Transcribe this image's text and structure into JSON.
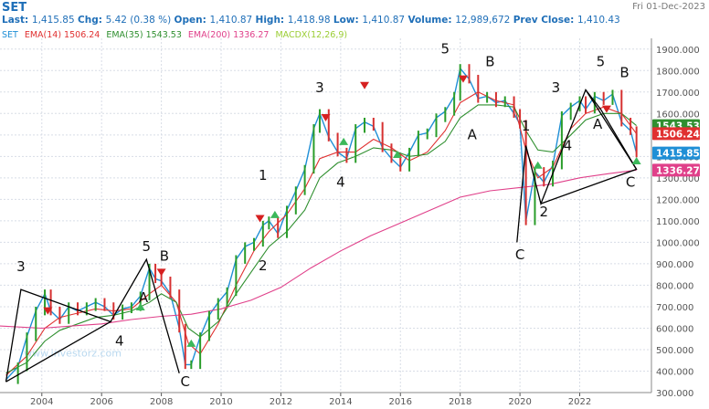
{
  "header": {
    "symbol": "SET",
    "date": "Fri 01-Dec-2023",
    "line1": [
      {
        "label": "Last:",
        "value": "1,415.85"
      },
      {
        "label": "Chg:",
        "value": "5.42 (0.38 %)"
      },
      {
        "label": "Open:",
        "value": "1,410.87"
      },
      {
        "label": "High:",
        "value": "1,418.98"
      },
      {
        "label": "Low:",
        "value": "1,410.87"
      },
      {
        "label": "Volume:",
        "value": "12,989,672"
      },
      {
        "label": "Prev Close:",
        "value": "1,410.43"
      }
    ],
    "legend": [
      {
        "name": "SET",
        "value": "",
        "color": "#1f8fd6"
      },
      {
        "name": "EMA(14)",
        "value": "1506.24",
        "color": "#e03030"
      },
      {
        "name": "EMA(35)",
        "value": "1543.53",
        "color": "#2f8f2f"
      },
      {
        "name": "EMA(200)",
        "value": "1336.27",
        "color": "#e0408a"
      },
      {
        "name": "MACDX(12,26,9)",
        "value": "",
        "color": "#9acd32"
      }
    ]
  },
  "watermark": "www.investorz.com",
  "chart_data": {
    "type": "line",
    "y_axis": {
      "ylim": [
        300,
        1950
      ],
      "ticks": [
        300,
        400,
        500,
        600,
        700,
        800,
        900,
        1000,
        1100,
        1200,
        1300,
        1400,
        1500,
        1600,
        1700,
        1800,
        1900
      ],
      "tick_labels": [
        "300.000",
        "400.000",
        "500.000",
        "600.000",
        "700.000",
        "800.000",
        "900.000",
        "1000.000",
        "1100.000",
        "1200.000",
        "1300.000",
        "1400.000",
        "1500.000",
        "1600.000",
        "1700.000",
        "1800.000",
        "1900.000"
      ]
    },
    "x_axis": {
      "xlim": [
        2002.6,
        2024.4
      ],
      "ticks": [
        2004,
        2006,
        2008,
        2010,
        2012,
        2014,
        2016,
        2018,
        2020,
        2022
      ],
      "tick_labels": [
        "2004",
        "2006",
        "2008",
        "2010",
        "2012",
        "2014",
        "2016",
        "2018",
        "2020",
        "2022"
      ]
    },
    "price_labels": [
      {
        "text": "1543.53",
        "value": 1543.53,
        "color": "#2f8f2f"
      },
      {
        "text": "1506.24",
        "value": 1506.24,
        "color": "#e03030"
      },
      {
        "text": "1415.85",
        "value": 1415.85,
        "color": "#1f8fd6"
      },
      {
        "text": "1336.27",
        "value": 1336.27,
        "color": "#e0408a"
      }
    ],
    "series": [
      {
        "name": "SET",
        "color": "#1f8fd6",
        "x": [
          2002.8,
          2003.2,
          2003.5,
          2003.8,
          2004.1,
          2004.3,
          2004.6,
          2004.9,
          2005.2,
          2005.5,
          2005.8,
          2006.1,
          2006.4,
          2006.7,
          2007.0,
          2007.3,
          2007.6,
          2007.8,
          2008.0,
          2008.3,
          2008.6,
          2008.8,
          2009.0,
          2009.3,
          2009.6,
          2009.9,
          2010.2,
          2010.5,
          2010.8,
          2011.1,
          2011.4,
          2011.6,
          2011.9,
          2012.2,
          2012.5,
          2012.8,
          2013.1,
          2013.3,
          2013.6,
          2013.9,
          2014.2,
          2014.5,
          2014.8,
          2015.1,
          2015.4,
          2015.7,
          2016.0,
          2016.3,
          2016.6,
          2016.9,
          2017.2,
          2017.5,
          2017.8,
          2018.0,
          2018.3,
          2018.6,
          2018.9,
          2019.2,
          2019.5,
          2019.8,
          2020.0,
          2020.2,
          2020.5,
          2020.8,
          2021.1,
          2021.4,
          2021.7,
          2022.0,
          2022.2,
          2022.5,
          2022.8,
          2023.1,
          2023.4,
          2023.7,
          2023.9
        ],
        "values": [
          360,
          420,
          560,
          680,
          760,
          680,
          640,
          700,
          680,
          700,
          720,
          700,
          660,
          690,
          700,
          750,
          880,
          830,
          820,
          760,
          600,
          430,
          430,
          560,
          660,
          720,
          770,
          920,
          980,
          1000,
          1080,
          1100,
          1040,
          1150,
          1240,
          1340,
          1530,
          1600,
          1490,
          1420,
          1390,
          1530,
          1560,
          1540,
          1440,
          1390,
          1350,
          1420,
          1500,
          1510,
          1580,
          1610,
          1680,
          1810,
          1760,
          1670,
          1680,
          1650,
          1660,
          1600,
          1550,
          1100,
          1330,
          1280,
          1360,
          1590,
          1630,
          1660,
          1620,
          1680,
          1660,
          1690,
          1560,
          1520,
          1415.85
        ]
      },
      {
        "name": "EMA(14)",
        "color": "#e03030",
        "x": [
          2002.8,
          2003.5,
          2004.1,
          2004.6,
          2005.2,
          2005.8,
          2006.4,
          2007.0,
          2007.6,
          2008.0,
          2008.5,
          2008.9,
          2009.3,
          2009.9,
          2010.5,
          2011.1,
          2011.6,
          2012.2,
          2012.8,
          2013.3,
          2013.9,
          2014.5,
          2015.1,
          2015.7,
          2016.3,
          2016.9,
          2017.5,
          2018.0,
          2018.6,
          2019.2,
          2019.8,
          2020.2,
          2020.6,
          2021.1,
          2021.7,
          2022.2,
          2022.8,
          2023.4,
          2023.9
        ],
        "values": [
          380,
          470,
          600,
          650,
          670,
          690,
          680,
          690,
          760,
          800,
          720,
          530,
          480,
          620,
          800,
          960,
          1050,
          1130,
          1250,
          1390,
          1420,
          1420,
          1480,
          1440,
          1380,
          1420,
          1520,
          1650,
          1700,
          1660,
          1640,
          1430,
          1300,
          1350,
          1530,
          1600,
          1630,
          1600,
          1506.24
        ]
      },
      {
        "name": "EMA(35)",
        "color": "#2f8f2f",
        "x": [
          2002.8,
          2003.5,
          2004.1,
          2004.6,
          2005.2,
          2005.8,
          2006.4,
          2007.0,
          2007.6,
          2008.0,
          2008.5,
          2008.9,
          2009.3,
          2009.9,
          2010.5,
          2011.1,
          2011.6,
          2012.2,
          2012.8,
          2013.3,
          2013.9,
          2014.5,
          2015.1,
          2015.7,
          2016.3,
          2016.9,
          2017.5,
          2018.0,
          2018.6,
          2019.2,
          2019.8,
          2020.2,
          2020.6,
          2021.1,
          2021.7,
          2022.2,
          2022.8,
          2023.4,
          2023.9
        ],
        "values": [
          390,
          440,
          540,
          590,
          620,
          650,
          660,
          680,
          720,
          760,
          720,
          600,
          560,
          630,
          760,
          880,
          980,
          1050,
          1150,
          1300,
          1370,
          1400,
          1440,
          1430,
          1400,
          1410,
          1470,
          1580,
          1640,
          1640,
          1630,
          1520,
          1430,
          1420,
          1500,
          1570,
          1600,
          1600,
          1543.53
        ]
      },
      {
        "name": "EMA(200)",
        "color": "#e0408a",
        "x": [
          2002.6,
          2004.0,
          2005.0,
          2006.0,
          2007.0,
          2008.0,
          2009.0,
          2010.0,
          2011.0,
          2012.0,
          2013.0,
          2014.0,
          2015.0,
          2016.0,
          2017.0,
          2018.0,
          2019.0,
          2020.0,
          2021.0,
          2022.0,
          2023.0,
          2023.9
        ],
        "values": [
          610,
          600,
          610,
          620,
          640,
          655,
          665,
          690,
          730,
          790,
          880,
          960,
          1030,
          1090,
          1150,
          1210,
          1240,
          1255,
          1270,
          1300,
          1320,
          1336.27
        ]
      }
    ],
    "wave_labels": [
      {
        "text": "3",
        "x": 2003.3,
        "y": 865
      },
      {
        "text": "4",
        "x": 2006.6,
        "y": 520
      },
      {
        "text": "5",
        "x": 2007.5,
        "y": 960
      },
      {
        "text": "A",
        "x": 2007.4,
        "y": 720
      },
      {
        "text": "B",
        "x": 2008.1,
        "y": 915
      },
      {
        "text": "C",
        "x": 2008.8,
        "y": 330
      },
      {
        "text": "1",
        "x": 2011.4,
        "y": 1290
      },
      {
        "text": "2",
        "x": 2011.4,
        "y": 870
      },
      {
        "text": "3",
        "x": 2013.3,
        "y": 1700
      },
      {
        "text": "4",
        "x": 2014.0,
        "y": 1260
      },
      {
        "text": "5",
        "x": 2017.5,
        "y": 1880
      },
      {
        "text": "B",
        "x": 2019.0,
        "y": 1820
      },
      {
        "text": "A",
        "x": 2018.4,
        "y": 1480
      },
      {
        "text": "C",
        "x": 2020.0,
        "y": 920
      },
      {
        "text": "1",
        "x": 2020.2,
        "y": 1520
      },
      {
        "text": "2",
        "x": 2020.8,
        "y": 1120
      },
      {
        "text": "3",
        "x": 2021.2,
        "y": 1700
      },
      {
        "text": "4",
        "x": 2021.6,
        "y": 1430
      },
      {
        "text": "5",
        "x": 2022.7,
        "y": 1820
      },
      {
        "text": "A",
        "x": 2022.6,
        "y": 1530
      },
      {
        "text": "B",
        "x": 2023.5,
        "y": 1770
      },
      {
        "text": "C",
        "x": 2023.7,
        "y": 1260
      }
    ],
    "wave_lines": [
      {
        "x": [
          2002.8,
          2003.3,
          2006.3,
          2002.8
        ],
        "y": [
          350,
          780,
          630,
          350
        ]
      },
      {
        "x": [
          2006.3,
          2007.5,
          2008.6,
          2007.5,
          2006.3
        ],
        "y": [
          630,
          920,
          390,
          920,
          630
        ]
      },
      {
        "x": [
          2019.9,
          2020.2,
          2020.7,
          2022.2,
          2023.9,
          2020.7
        ],
        "y": [
          1000,
          1450,
          1180,
          1710,
          1340,
          1180
        ]
      },
      {
        "x": [
          2022.2,
          2022.7,
          2023.9
        ],
        "y": [
          1710,
          1620,
          1340
        ]
      }
    ],
    "sell_markers": [
      {
        "x": 2004.2,
        "y": 680
      },
      {
        "x": 2008.0,
        "y": 860
      },
      {
        "x": 2011.3,
        "y": 1110
      },
      {
        "x": 2013.5,
        "y": 1580
      },
      {
        "x": 2014.8,
        "y": 1730
      },
      {
        "x": 2018.1,
        "y": 1760
      },
      {
        "x": 2022.9,
        "y": 1620
      }
    ],
    "buy_markers": [
      {
        "x": 2007.3,
        "y": 700
      },
      {
        "x": 2009.0,
        "y": 530
      },
      {
        "x": 2011.8,
        "y": 1130
      },
      {
        "x": 2014.1,
        "y": 1470
      },
      {
        "x": 2015.9,
        "y": 1410
      },
      {
        "x": 2020.6,
        "y": 1360
      },
      {
        "x": 2023.9,
        "y": 1380
      }
    ]
  }
}
